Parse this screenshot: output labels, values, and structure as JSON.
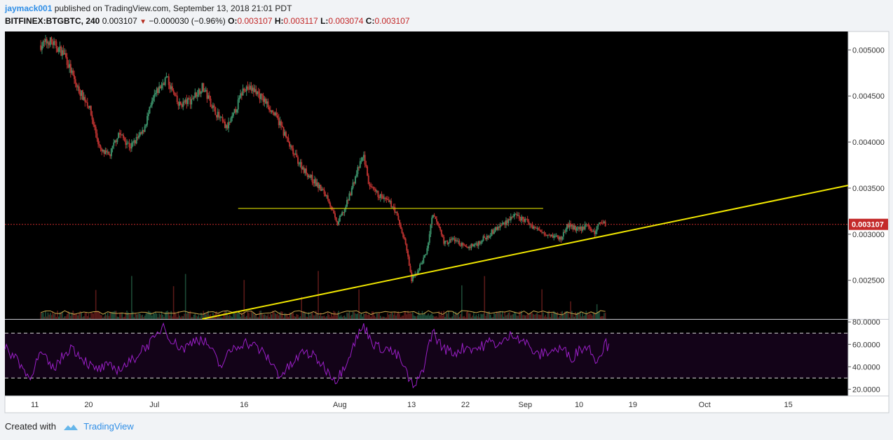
{
  "header": {
    "author": "jaymack001",
    "published_text": "published on TradingView.com, September 13, 2018 21:01 PDT"
  },
  "ohlc": {
    "symbol": "BITFINEX:BTGBTC, 240",
    "last": "0.003107",
    "change": "−0.000030 (−0.96%)",
    "o_label": "O:",
    "o": "0.003107",
    "h_label": "H:",
    "h": "0.003117",
    "l_label": "L:",
    "l": "0.003074",
    "c_label": "C:",
    "c": "0.003107"
  },
  "footer": {
    "created_with": "Created with",
    "brand": "TradingView"
  },
  "chart_data": {
    "type": "candlestick",
    "price_axis": {
      "ticks": [
        "0.005000",
        "0.004500",
        "0.004000",
        "0.003500",
        "0.003000",
        "0.002500"
      ],
      "tick_values": [
        0.005,
        0.0045,
        0.004,
        0.0035,
        0.003,
        0.0025
      ],
      "last_price_label": "0.003107",
      "last_price": 0.003107,
      "range": [
        0.00208,
        0.0052
      ]
    },
    "rsi_axis": {
      "ticks": [
        "80.0000",
        "60.0000",
        "40.0000",
        "20.0000"
      ],
      "tick_values": [
        80,
        60,
        40,
        20
      ],
      "bands": [
        70,
        30
      ],
      "range": [
        14,
        82
      ]
    },
    "time_axis": {
      "labels": [
        "11",
        "20",
        "Jul",
        "16",
        "Aug",
        "13",
        "22",
        "Sep",
        "10",
        "19",
        "Oct",
        "15"
      ],
      "label_days": [
        0,
        9,
        20,
        35,
        51,
        63,
        72,
        82,
        91,
        100,
        112,
        126
      ],
      "range_days": [
        -5,
        136
      ]
    },
    "price_path": [
      [
        1,
        0.00505
      ],
      [
        2.5,
        0.0051
      ],
      [
        5,
        0.00495
      ],
      [
        7,
        0.0046
      ],
      [
        9,
        0.0044
      ],
      [
        11,
        0.0039
      ],
      [
        12.5,
        0.00385
      ],
      [
        14,
        0.0041
      ],
      [
        16,
        0.00395
      ],
      [
        18,
        0.0041
      ],
      [
        20,
        0.0045
      ],
      [
        22,
        0.0047
      ],
      [
        24,
        0.0044
      ],
      [
        26,
        0.00445
      ],
      [
        28,
        0.0046
      ],
      [
        30,
        0.00435
      ],
      [
        32,
        0.00415
      ],
      [
        33,
        0.00425
      ],
      [
        35,
        0.0046
      ],
      [
        37,
        0.00455
      ],
      [
        39,
        0.0044
      ],
      [
        41,
        0.0042
      ],
      [
        43,
        0.0039
      ],
      [
        45,
        0.0037
      ],
      [
        47,
        0.00355
      ],
      [
        49,
        0.0034
      ],
      [
        50.5,
        0.0031
      ],
      [
        52,
        0.0033
      ],
      [
        54,
        0.0037
      ],
      [
        55,
        0.00385
      ],
      [
        56,
        0.0035
      ],
      [
        58,
        0.0034
      ],
      [
        60,
        0.0033
      ],
      [
        62,
        0.0029
      ],
      [
        63,
        0.0025
      ],
      [
        64,
        0.0026
      ],
      [
        65.5,
        0.0028
      ],
      [
        66.5,
        0.0032
      ],
      [
        67.5,
        0.0031
      ],
      [
        68.5,
        0.0029
      ],
      [
        70,
        0.00295
      ],
      [
        72,
        0.00285
      ],
      [
        74,
        0.0029
      ],
      [
        76,
        0.003
      ],
      [
        78,
        0.0031
      ],
      [
        80,
        0.0032
      ],
      [
        82,
        0.00315
      ],
      [
        84,
        0.00305
      ],
      [
        86,
        0.003
      ],
      [
        88,
        0.00295
      ],
      [
        89,
        0.0031
      ],
      [
        91,
        0.00305
      ],
      [
        92.5,
        0.0031
      ],
      [
        93.5,
        0.003
      ],
      [
        94.5,
        0.00315
      ],
      [
        95.5,
        0.003107
      ]
    ],
    "rsi_path": [
      [
        -5,
        56
      ],
      [
        -3,
        48
      ],
      [
        -1,
        30
      ],
      [
        1,
        52
      ],
      [
        3,
        38
      ],
      [
        6,
        58
      ],
      [
        8,
        48
      ],
      [
        10,
        37
      ],
      [
        12,
        40
      ],
      [
        14,
        38
      ],
      [
        16,
        44
      ],
      [
        18,
        56
      ],
      [
        20,
        64
      ],
      [
        21.5,
        78
      ],
      [
        23,
        62
      ],
      [
        25,
        56
      ],
      [
        27,
        66
      ],
      [
        29,
        60
      ],
      [
        31,
        40
      ],
      [
        33,
        56
      ],
      [
        35,
        62
      ],
      [
        37,
        58
      ],
      [
        39,
        48
      ],
      [
        41,
        32
      ],
      [
        43,
        42
      ],
      [
        45,
        54
      ],
      [
        47,
        48
      ],
      [
        49,
        36
      ],
      [
        50.5,
        28
      ],
      [
        52,
        44
      ],
      [
        54,
        68
      ],
      [
        55,
        76
      ],
      [
        57,
        58
      ],
      [
        59,
        56
      ],
      [
        61,
        48
      ],
      [
        62.5,
        30
      ],
      [
        63.5,
        20
      ],
      [
        65,
        40
      ],
      [
        66.5,
        72
      ],
      [
        68,
        58
      ],
      [
        70,
        52
      ],
      [
        72,
        58
      ],
      [
        74,
        56
      ],
      [
        76,
        62
      ],
      [
        78,
        60
      ],
      [
        80,
        70
      ],
      [
        82,
        62
      ],
      [
        84,
        50
      ],
      [
        86,
        54
      ],
      [
        88,
        56
      ],
      [
        90,
        48
      ],
      [
        91,
        56
      ],
      [
        92.5,
        58
      ],
      [
        94,
        46
      ],
      [
        95.5,
        62
      ],
      [
        96,
        56
      ]
    ],
    "annotations": [
      {
        "name": "resistance-line",
        "color": "#d8d800",
        "from": [
          34,
          0.00328
        ],
        "to": [
          85,
          0.00328
        ]
      },
      {
        "name": "support-trendline",
        "color": "#f0e600",
        "from": [
          28,
          0.00208
        ],
        "to": [
          136,
          0.00353
        ]
      }
    ],
    "colors": {
      "background": "#000000",
      "rsi_background": "#130318",
      "rsi_line": "#9b1fc8",
      "candle_up": "#3a8f68",
      "candle_down": "#b8312f",
      "volume_ma": "#c9a64a",
      "last_price_line": "#c42a2a",
      "last_price_tag": "#c42a2a"
    }
  }
}
